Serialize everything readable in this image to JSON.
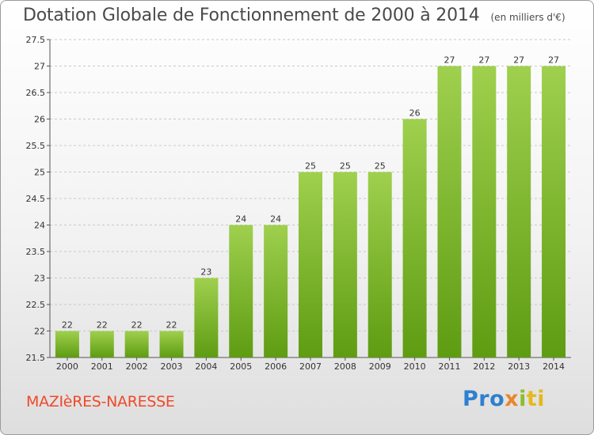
{
  "chart_data": {
    "type": "bar",
    "title": "Dotation Globale de Fonctionnement de 2000 à 2014",
    "subtitle": "(en milliers d'€)",
    "categories": [
      "2000",
      "2001",
      "2002",
      "2003",
      "2004",
      "2005",
      "2006",
      "2007",
      "2008",
      "2009",
      "2010",
      "2011",
      "2012",
      "2013",
      "2014"
    ],
    "values": [
      22,
      22,
      22,
      22,
      23,
      24,
      24,
      25,
      25,
      25,
      26,
      27,
      27,
      27,
      27
    ],
    "data_labels": [
      "22",
      "22",
      "22",
      "22",
      "23",
      "24",
      "24",
      "25",
      "25",
      "25",
      "26",
      "27",
      "27",
      "27",
      "27"
    ],
    "xlabel": "",
    "ylabel": "",
    "ylim": [
      21.5,
      27.5
    ],
    "yticks": [
      21.5,
      22,
      22.5,
      23,
      23.5,
      24,
      24.5,
      25,
      25.5,
      26,
      26.5,
      27,
      27.5
    ],
    "ytick_labels": [
      "21.5",
      "22",
      "22.5",
      "23",
      "23.5",
      "24",
      "24.5",
      "25",
      "25.5",
      "26",
      "26.5",
      "27",
      "27.5"
    ],
    "grid": "horizontal-dashed",
    "bar_color_top": "#9fd04e",
    "bar_color_bottom": "#5e9c12"
  },
  "footer": {
    "commune": "MAZIèRES-NARESSE",
    "logo_parts": [
      "Pro",
      "x",
      "i",
      "ti"
    ]
  },
  "colors": {
    "title": "#4a4a4a",
    "commune": "#ee4a2b",
    "logo_blue": "#2f7fd0",
    "logo_orange": "#e8882a",
    "logo_green": "#8cbd2a",
    "logo_yellow": "#e3b91c"
  }
}
